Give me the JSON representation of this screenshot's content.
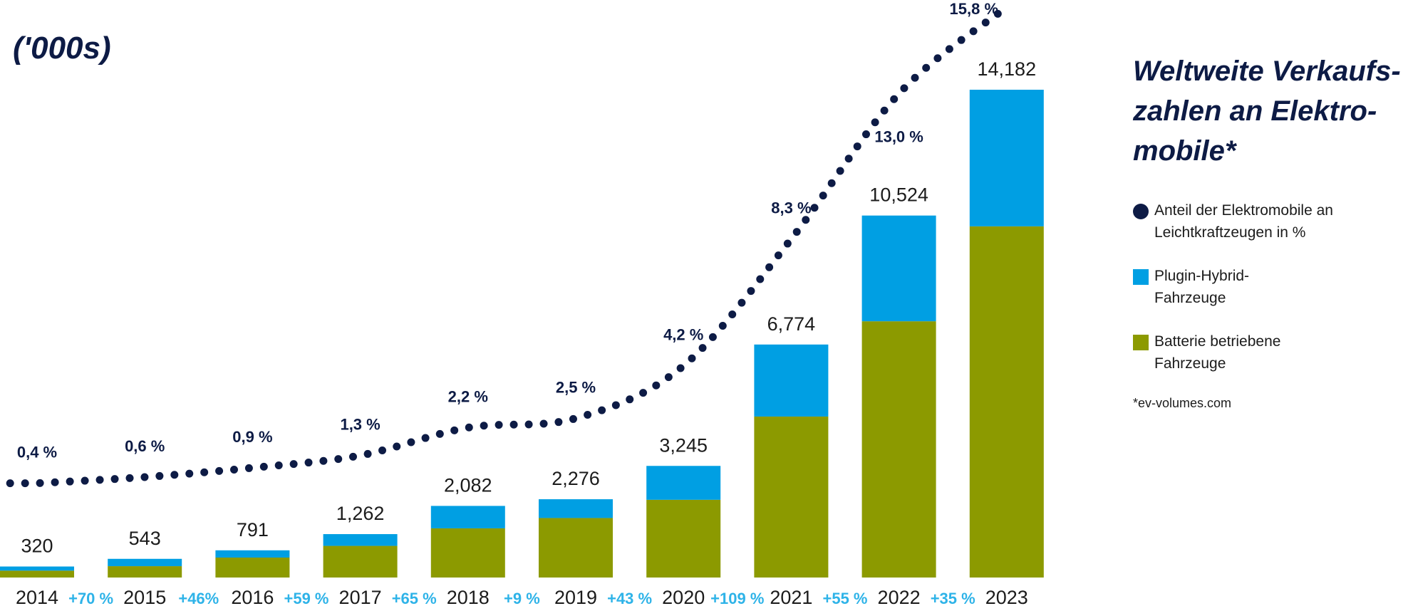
{
  "unit_label": "('000s)",
  "title_lines": [
    "Weltweite Verkaufs-",
    "zahlen an Elektro-",
    "mobile*"
  ],
  "legend": [
    {
      "lines": [
        "Anteil der Elektromobile an",
        "Leichtkraftzeugen in %"
      ],
      "marker": "dot",
      "color": "#0d1b45"
    },
    {
      "lines": [
        "Plugin-Hybrid-",
        "Fahrzeuge"
      ],
      "marker": "square",
      "color": "#009fe3"
    },
    {
      "lines": [
        "Batterie betriebene",
        "Fahrzeuge"
      ],
      "marker": "square",
      "color": "#8c9a00"
    }
  ],
  "source_note": "*ev-volumes.com",
  "colors": {
    "bev": "#8c9a00",
    "phev": "#009fe3",
    "share_line": "#0d1b45",
    "growth_text": "#2eb3e8"
  },
  "chart_data": {
    "type": "bar",
    "stacked": true,
    "categories": [
      "2014",
      "2015",
      "2016",
      "2017",
      "2018",
      "2019",
      "2020",
      "2021",
      "2022",
      "2023"
    ],
    "totals_labels": [
      "320",
      "543",
      "791",
      "1,262",
      "2,082",
      "2,276",
      "3,245",
      "6,774",
      "10,524",
      "14,182"
    ],
    "series": [
      {
        "name": "Batterie betriebene Fahrzeuge",
        "values": [
          200,
          330,
          580,
          920,
          1430,
          1730,
          2260,
          4680,
          7450,
          10210
        ]
      },
      {
        "name": "Plugin-Hybrid-Fahrzeuge",
        "values": [
          120,
          213,
          211,
          342,
          652,
          546,
          985,
          2094,
          3074,
          3972
        ]
      }
    ],
    "totals": [
      320,
      543,
      791,
      1262,
      2082,
      2276,
      3245,
      6774,
      10524,
      14182
    ],
    "growth_labels": [
      "+70 %",
      "+46%",
      "+59 %",
      "+65 %",
      "+9 %",
      "+43 %",
      "+109 %",
      "+55 %",
      "+35 %"
    ],
    "share_line": {
      "name": "Anteil der Elektromobile an Leichtkraftzeugen in %",
      "values": [
        0.4,
        0.6,
        0.9,
        1.3,
        2.2,
        2.5,
        4.2,
        8.3,
        13.0,
        15.8
      ],
      "labels": [
        "0,4 %",
        "0,6 %",
        "0,9 %",
        "1,3 %",
        "2,2 %",
        "2,5 %",
        "4,2 %",
        "8,3 %",
        "13,0 %",
        "15,8 %"
      ]
    },
    "ylabel": "('000s)",
    "ylim": [
      0,
      14182
    ],
    "grid": false
  }
}
